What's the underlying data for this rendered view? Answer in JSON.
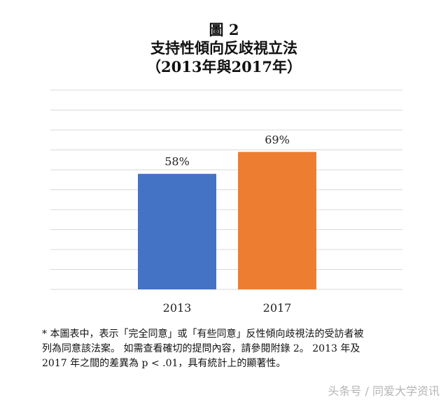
{
  "title": {
    "line1": "圖 2",
    "line2": "支持性傾向反歧視立法",
    "line3": "（2013年與2017年）"
  },
  "chart_data": {
    "type": "bar",
    "categories": [
      "2013",
      "2017"
    ],
    "values": [
      58,
      69
    ],
    "data_labels": [
      "58%",
      "69%"
    ],
    "colors": [
      "#4472C4",
      "#ED7D31"
    ],
    "ylim": [
      0,
      100
    ],
    "grid": true,
    "gridline_count": 11
  },
  "note": {
    "line1": "* 本圖表中，表示「完全同意」或「有些同意」反性傾向歧視法的受訪者被",
    "line2": "列為同意該法案。 如需查看確切的提問內容，請參閱附錄 2。 2013 年及",
    "line3": "2017 年之間的差異為 p < .01，具有統計上的顯著性。"
  },
  "watermark": "头条号 / 同爱大学资讯"
}
